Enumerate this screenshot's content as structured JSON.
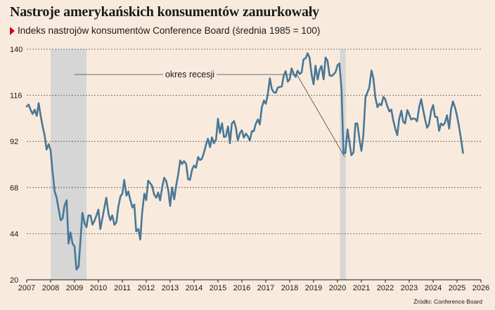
{
  "header": {
    "title": "Nastroje amerykańskich konsumentów zanurkowały",
    "subtitle": "Indeks nastrojów konsumentów Conference Board (średnia 1985 = 100)",
    "source": "Źródło: Conference Board"
  },
  "colors": {
    "line": "#4a7796",
    "recession": "#d6d6d6",
    "background": "#f8ebdd",
    "marker": "#d0021b",
    "grid": "#555555"
  },
  "chart_data": {
    "type": "line",
    "title": "Nastroje amerykańskich konsumentów zanurkowały",
    "subtitle": "Indeks nastrojów konsumentów Conference Board (średnia 1985 = 100)",
    "xlim": [
      2007,
      2026
    ],
    "ylim": [
      20,
      140
    ],
    "x_ticks": [
      2007,
      2008,
      2009,
      2010,
      2011,
      2012,
      2013,
      2014,
      2015,
      2016,
      2017,
      2018,
      2019,
      2020,
      2021,
      2022,
      2023,
      2024,
      2025,
      2026
    ],
    "y_ticks": [
      20,
      44,
      68,
      92,
      116,
      140
    ],
    "grid": "horizontal dashed",
    "annotation": "okres recesji",
    "recessions": [
      [
        2008.0,
        2009.5
      ],
      [
        2020.1,
        2020.35
      ]
    ],
    "series": [
      {
        "x": [
          2007.0,
          2007.08,
          2007.17,
          2007.25,
          2007.33,
          2007.42,
          2007.5,
          2007.58,
          2007.67,
          2007.75,
          2007.83,
          2007.92,
          2008.0,
          2008.08,
          2008.17,
          2008.25,
          2008.33,
          2008.42,
          2008.5,
          2008.58,
          2008.67,
          2008.75,
          2008.83,
          2008.92,
          2009.0,
          2009.08,
          2009.17,
          2009.25,
          2009.33,
          2009.42,
          2009.5,
          2009.58,
          2009.67,
          2009.75,
          2009.83,
          2009.92,
          2010.0,
          2010.08,
          2010.17,
          2010.25,
          2010.33,
          2010.42,
          2010.5,
          2010.58,
          2010.67,
          2010.75,
          2010.83,
          2010.92,
          2011.0,
          2011.08,
          2011.17,
          2011.25,
          2011.33,
          2011.42,
          2011.5,
          2011.58,
          2011.67,
          2011.75,
          2011.83,
          2011.92,
          2012.0,
          2012.08,
          2012.17,
          2012.25,
          2012.33,
          2012.42,
          2012.5,
          2012.58,
          2012.67,
          2012.75,
          2012.83,
          2012.92,
          2013.0,
          2013.08,
          2013.17,
          2013.25,
          2013.33,
          2013.42,
          2013.5,
          2013.58,
          2013.67,
          2013.75,
          2013.83,
          2013.92,
          2014.0,
          2014.08,
          2014.17,
          2014.25,
          2014.33,
          2014.42,
          2014.5,
          2014.58,
          2014.67,
          2014.75,
          2014.83,
          2014.92,
          2015.0,
          2015.08,
          2015.17,
          2015.25,
          2015.33,
          2015.42,
          2015.5,
          2015.58,
          2015.67,
          2015.75,
          2015.83,
          2015.92,
          2016.0,
          2016.08,
          2016.17,
          2016.25,
          2016.33,
          2016.42,
          2016.5,
          2016.58,
          2016.67,
          2016.75,
          2016.83,
          2016.92,
          2017.0,
          2017.08,
          2017.17,
          2017.25,
          2017.33,
          2017.42,
          2017.5,
          2017.58,
          2017.67,
          2017.75,
          2017.83,
          2017.92,
          2018.0,
          2018.08,
          2018.17,
          2018.25,
          2018.33,
          2018.42,
          2018.5,
          2018.58,
          2018.67,
          2018.75,
          2018.83,
          2018.92,
          2019.0,
          2019.08,
          2019.17,
          2019.25,
          2019.33,
          2019.42,
          2019.5,
          2019.58,
          2019.67,
          2019.75,
          2019.83,
          2019.92,
          2020.0,
          2020.08,
          2020.17,
          2020.25,
          2020.33,
          2020.42,
          2020.5,
          2020.58,
          2020.67,
          2020.75,
          2020.83,
          2020.92,
          2021.0,
          2021.08,
          2021.17,
          2021.25,
          2021.33,
          2021.42,
          2021.5,
          2021.58,
          2021.67,
          2021.75,
          2021.83,
          2021.92,
          2022.0,
          2022.08,
          2022.17,
          2022.25,
          2022.33,
          2022.42,
          2022.5,
          2022.58,
          2022.67,
          2022.75,
          2022.83,
          2022.92,
          2023.0,
          2023.08,
          2023.17,
          2023.25,
          2023.33,
          2023.42,
          2023.5,
          2023.58,
          2023.67,
          2023.75,
          2023.83,
          2023.92,
          2024.0,
          2024.08,
          2024.17,
          2024.25,
          2024.33,
          2024.42,
          2024.5,
          2024.58,
          2024.67,
          2024.75,
          2024.83,
          2024.92,
          2025.0,
          2025.08,
          2025.17,
          2025.25
        ],
        "y": [
          110.2,
          111.2,
          108.2,
          106.3,
          108.5,
          105.3,
          111.9,
          105.6,
          99.5,
          95.2,
          87.8,
          90.6,
          87.3,
          76.4,
          65.9,
          62.8,
          57.2,
          51.0,
          51.9,
          58.5,
          61.4,
          38.8,
          44.7,
          38.6,
          37.4,
          25.3,
          26.9,
          40.8,
          54.8,
          49.3,
          47.4,
          53.5,
          53.4,
          48.7,
          50.6,
          53.6,
          56.5,
          46.4,
          52.3,
          57.7,
          62.7,
          54.3,
          51.0,
          53.5,
          48.6,
          49.9,
          57.8,
          63.4,
          64.8,
          72.0,
          63.8,
          66.0,
          61.7,
          57.6,
          59.2,
          45.2,
          46.4,
          40.9,
          55.2,
          64.8,
          61.5,
          71.6,
          70.2,
          68.7,
          64.4,
          62.7,
          65.4,
          61.3,
          68.4,
          73.1,
          71.5,
          66.7,
          58.4,
          68.0,
          61.9,
          69.0,
          74.3,
          82.1,
          80.3,
          81.8,
          80.2,
          72.4,
          72.0,
          77.5,
          79.4,
          78.3,
          83.9,
          82.3,
          83.0,
          86.4,
          90.3,
          93.4,
          89.0,
          94.1,
          91.0,
          93.1,
          103.8,
          96.4,
          101.4,
          94.3,
          94.6,
          99.8,
          91.0,
          101.3,
          102.6,
          99.1,
          92.6,
          96.3,
          97.8,
          94.0,
          96.1,
          94.7,
          92.4,
          97.4,
          97.3,
          101.1,
          103.5,
          100.8,
          109.4,
          113.3,
          111.6,
          116.1,
          124.9,
          119.4,
          117.6,
          117.3,
          120.0,
          120.4,
          120.6,
          126.2,
          128.6,
          123.1,
          124.3,
          130.0,
          127.0,
          125.6,
          128.8,
          127.1,
          127.9,
          134.7,
          135.3,
          137.9,
          135.7,
          126.6,
          121.7,
          131.4,
          124.2,
          129.2,
          131.3,
          124.3,
          135.7,
          134.2,
          126.3,
          126.1,
          126.8,
          128.2,
          131.6,
          132.6,
          118.8,
          85.7,
          85.9,
          98.3,
          91.7,
          84.8,
          86.3,
          101.3,
          101.4,
          92.9,
          87.1,
          95.2,
          114.9,
          117.5,
          120.0,
          128.9,
          125.1,
          115.2,
          109.8,
          111.6,
          110.8,
          115.2,
          113.8,
          110.5,
          107.6,
          108.6,
          103.2,
          98.4,
          95.3,
          103.6,
          108.0,
          102.2,
          101.4,
          108.3,
          106.0,
          103.4,
          104.0,
          103.7,
          102.5,
          110.1,
          114.0,
          108.7,
          103.0,
          99.1,
          101.0,
          108.0,
          110.9,
          104.8,
          104.7,
          97.5,
          101.3,
          100.4,
          101.9,
          105.6,
          98.7,
          108.7,
          112.8,
          109.5,
          105.3,
          100.1,
          92.9,
          86.0
        ]
      }
    ]
  }
}
